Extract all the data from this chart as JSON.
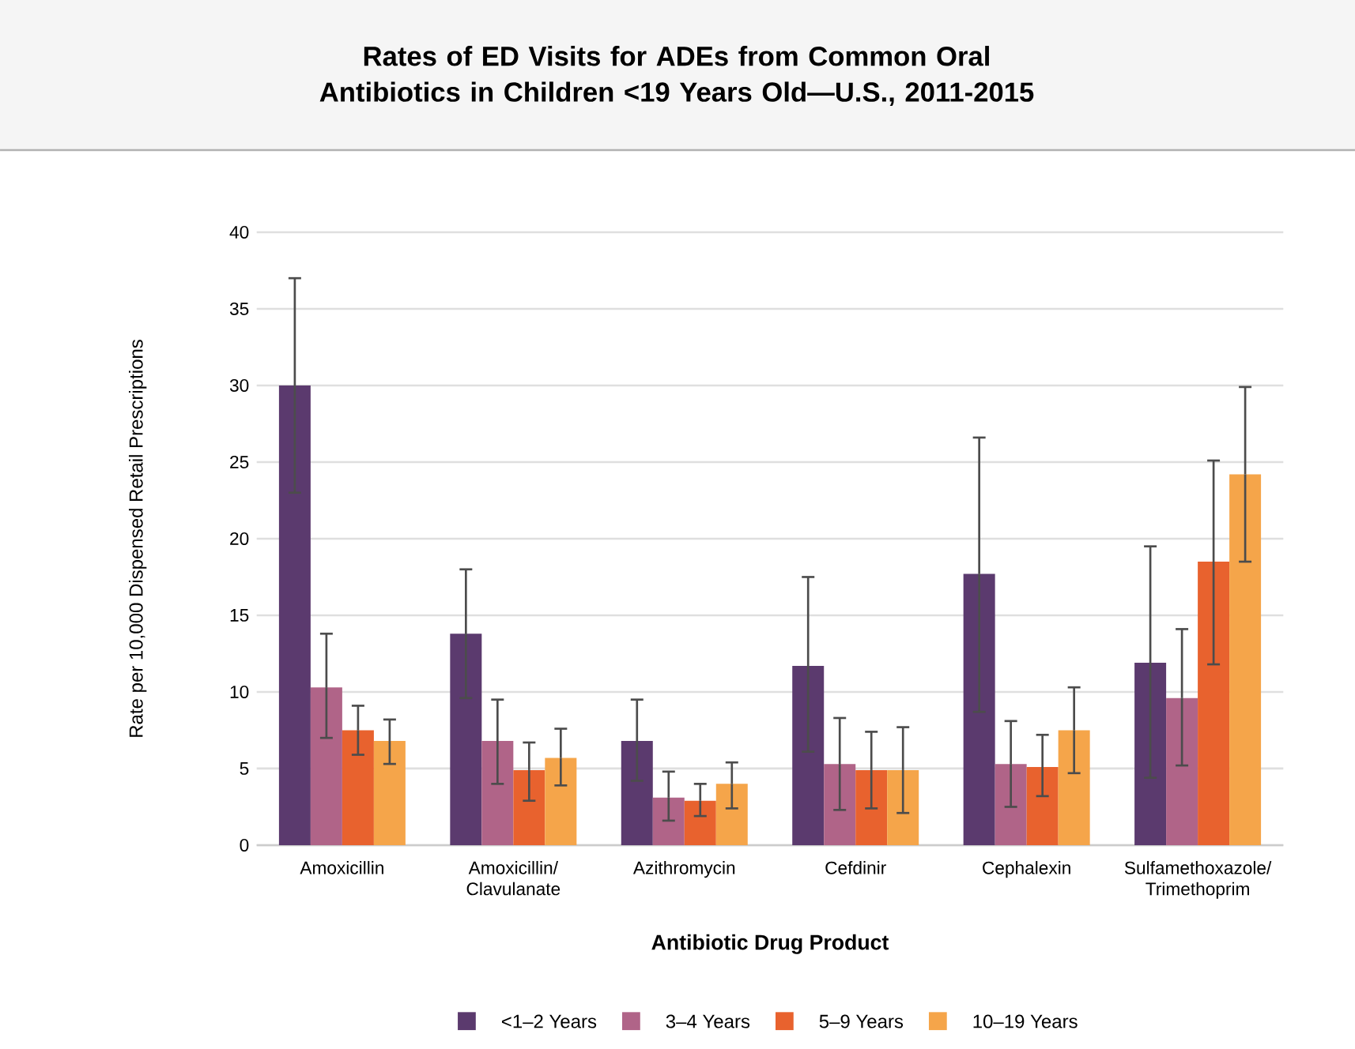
{
  "chart_data": {
    "type": "bar",
    "title": "Rates of ED Visits for ADEs from Common Oral Antibiotics in Children <19 Years Old—U.S., 2011-2015",
    "xlabel": "Antibiotic Drug Product",
    "ylabel": "Rate per 10,000 Dispensed Retail Prescriptions",
    "categories": [
      "Amoxicillin",
      "Amoxicillin/ Clavulanate",
      "Azithromycin",
      "Cefdinir",
      "Cephalexin",
      "Sulfamethoxazole/ Trimethoprim"
    ],
    "series": [
      {
        "name": "<1–2 Years",
        "color": "#5b3a6e",
        "values": [
          30,
          13.8,
          6.8,
          11.7,
          17.7,
          11.9
        ],
        "errors": [
          [
            23,
            37
          ],
          [
            9.6,
            18
          ],
          [
            4.2,
            9.5
          ],
          [
            6.1,
            17.5
          ],
          [
            8.7,
            26.6
          ],
          [
            4.4,
            19.5
          ]
        ]
      },
      {
        "name": "3–4 Years",
        "color": "#b06488",
        "values": [
          10.3,
          6.8,
          3.1,
          5.3,
          5.3,
          9.6
        ],
        "errors": [
          [
            7,
            13.8
          ],
          [
            4,
            9.5
          ],
          [
            1.6,
            4.8
          ],
          [
            2.3,
            8.3
          ],
          [
            2.5,
            8.1
          ],
          [
            5.2,
            14.1
          ]
        ]
      },
      {
        "name": "5–9 Years",
        "color": "#e8622e",
        "values": [
          7.5,
          4.9,
          2.9,
          4.9,
          5.1,
          18.5
        ],
        "errors": [
          [
            5.9,
            9.1
          ],
          [
            2.9,
            6.7
          ],
          [
            1.9,
            4
          ],
          [
            2.4,
            7.4
          ],
          [
            3.2,
            7.2
          ],
          [
            11.8,
            25.1
          ]
        ]
      },
      {
        "name": "10–19 Years",
        "color": "#f5a54a",
        "values": [
          6.8,
          5.7,
          4,
          4.9,
          7.5,
          24.2
        ],
        "errors": [
          [
            5.3,
            8.2
          ],
          [
            3.9,
            7.6
          ],
          [
            2.4,
            5.4
          ],
          [
            2.1,
            7.7
          ],
          [
            4.7,
            10.3
          ],
          [
            18.5,
            29.9
          ]
        ]
      }
    ],
    "ylim": [
      0,
      40
    ],
    "yticks": [
      0,
      5,
      10,
      15,
      20,
      25,
      30,
      35,
      40
    ],
    "grid": "y",
    "legend": "bottom"
  }
}
